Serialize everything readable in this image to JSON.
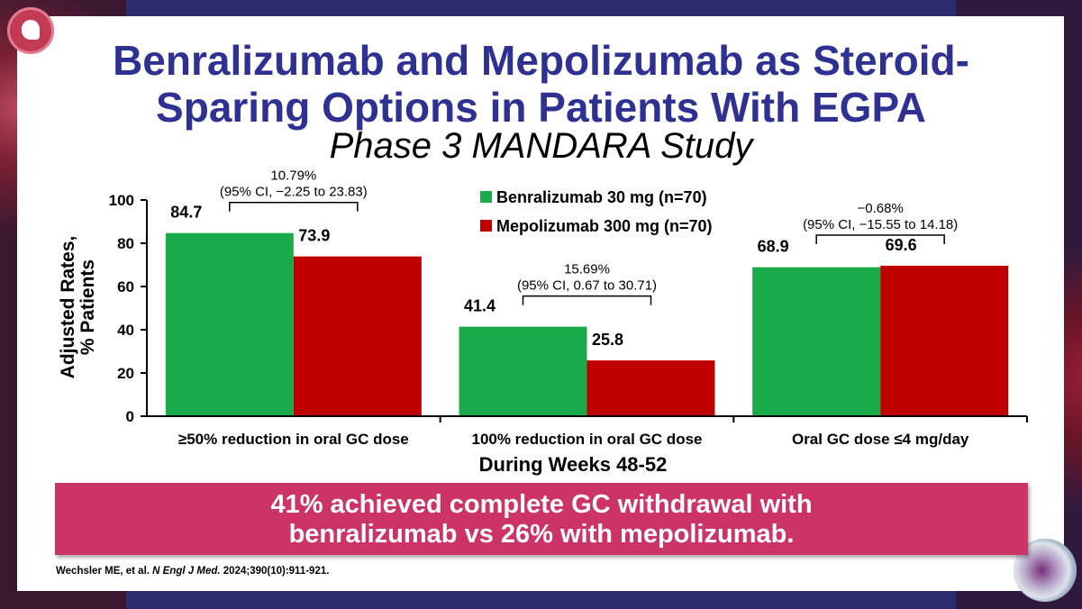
{
  "slide": {
    "title_line1": "Benralizumab and Mepolizumab as Steroid-",
    "title_line2": "Sparing Options in Patients With EGPA",
    "subtitle": "Phase 3 MANDARA Study",
    "banner_line1": "41% achieved complete GC withdrawal with",
    "banner_line2": "benralizumab vs 26% with mepolizumab.",
    "citation_authors": "Wechsler ME, et al.",
    "citation_journal": "N Engl J Med.",
    "citation_rest": "2024;390(10):911-921."
  },
  "chart_data": {
    "type": "bar",
    "ylabel_line1": "Adjusted Rates,",
    "ylabel_line2": "% Patients",
    "xlabel": "During Weeks 48-52",
    "ylim": [
      0,
      100
    ],
    "yticks": [
      0,
      20,
      40,
      60,
      80,
      100
    ],
    "categories": [
      "≥50% reduction in oral GC dose",
      "100% reduction in oral GC dose",
      "Oral GC dose ≤4 mg/day"
    ],
    "series": [
      {
        "name": "Benralizumab 30 mg (n=70)",
        "color": "#1aaa4a",
        "values": [
          84.7,
          41.4,
          68.9
        ]
      },
      {
        "name": "Mepolizumab 300 mg (n=70)",
        "color": "#c00000",
        "values": [
          73.9,
          25.8,
          69.6
        ]
      }
    ],
    "data_labels": [
      [
        "84.7",
        "41.4",
        "68.9"
      ],
      [
        "73.9",
        "25.8",
        "69.6"
      ]
    ],
    "annotations": [
      {
        "line1": "10.79%",
        "line2": "(95% CI, −2.25 to 23.83)"
      },
      {
        "line1": "15.69%",
        "line2": "(95% CI, 0.67 to 30.71)"
      },
      {
        "line1": "−0.68%",
        "line2": "(95% CI, −15.55 to 14.18)"
      }
    ],
    "legend_position": "top-center",
    "grid": false
  }
}
